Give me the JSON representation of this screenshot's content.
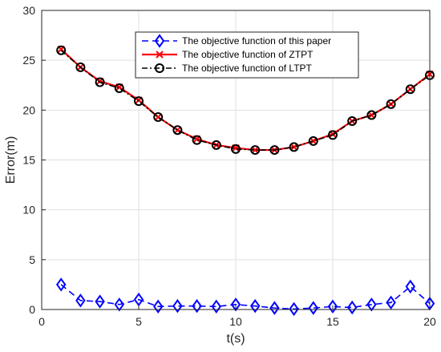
{
  "chart_data": {
    "type": "line",
    "xlabel": "t(s)",
    "ylabel": "Error(m)",
    "xlim": [
      0,
      20
    ],
    "ylim": [
      0,
      30
    ],
    "xticks": [
      0,
      5,
      10,
      15,
      20
    ],
    "yticks": [
      0,
      5,
      10,
      15,
      20,
      25,
      30
    ],
    "grid": true,
    "legend_position": "top-center",
    "x": [
      1,
      2,
      3,
      4,
      5,
      6,
      7,
      8,
      9,
      10,
      11,
      12,
      13,
      14,
      15,
      16,
      17,
      18,
      19,
      20
    ],
    "series": [
      {
        "name": "The objective function of this paper",
        "color": "#0000ff",
        "line_style": "dashed",
        "marker": "diamond",
        "values": [
          2.5,
          0.9,
          0.8,
          0.5,
          1.0,
          0.3,
          0.35,
          0.35,
          0.3,
          0.5,
          0.35,
          0.15,
          0.05,
          0.15,
          0.3,
          0.2,
          0.5,
          0.7,
          2.3,
          0.6
        ]
      },
      {
        "name": "The objective function of ZTPT",
        "color": "#ff0000",
        "line_style": "solid",
        "marker": "x",
        "values": [
          26.1,
          24.3,
          22.9,
          22.3,
          21.0,
          19.3,
          18.0,
          17.1,
          16.5,
          16.2,
          16.0,
          16.0,
          16.3,
          16.9,
          17.6,
          18.9,
          19.5,
          20.6,
          22.1,
          23.6
        ]
      },
      {
        "name": "The objective function of LTPT",
        "color": "#000000",
        "line_style": "dashdot",
        "marker": "circle",
        "values": [
          26.0,
          24.3,
          22.8,
          22.2,
          20.9,
          19.3,
          18.0,
          17.0,
          16.5,
          16.1,
          16.0,
          16.0,
          16.3,
          16.9,
          17.5,
          18.9,
          19.5,
          20.6,
          22.1,
          23.5
        ]
      }
    ]
  }
}
